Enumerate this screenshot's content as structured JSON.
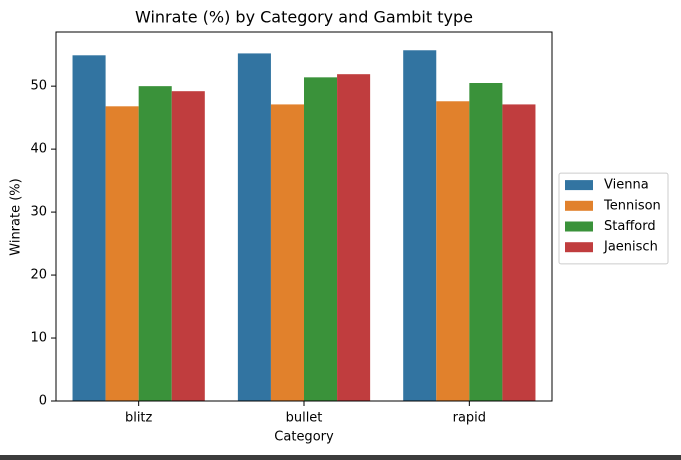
{
  "chart_data": {
    "type": "bar",
    "title": "Winrate (%) by Category and Gambit type",
    "x_label": "Category",
    "y_label": "Winrate (%)",
    "categories": [
      "blitz",
      "bullet",
      "rapid"
    ],
    "series": [
      {
        "name": "Vienna",
        "color": "#3274a1",
        "values": [
          54.9,
          55.2,
          55.7
        ]
      },
      {
        "name": "Tennison",
        "color": "#e1812c",
        "values": [
          46.8,
          47.1,
          47.6
        ]
      },
      {
        "name": "Stafford",
        "color": "#3a923a",
        "values": [
          50.0,
          51.4,
          50.5
        ]
      },
      {
        "name": "Jaenisch",
        "color": "#c03d3e",
        "values": [
          49.2,
          51.9,
          47.1
        ]
      }
    ],
    "ylim": [
      0,
      58.6
    ],
    "yticks": [
      0,
      10,
      20,
      30,
      40,
      50
    ],
    "grid": false,
    "legend": "center right"
  }
}
